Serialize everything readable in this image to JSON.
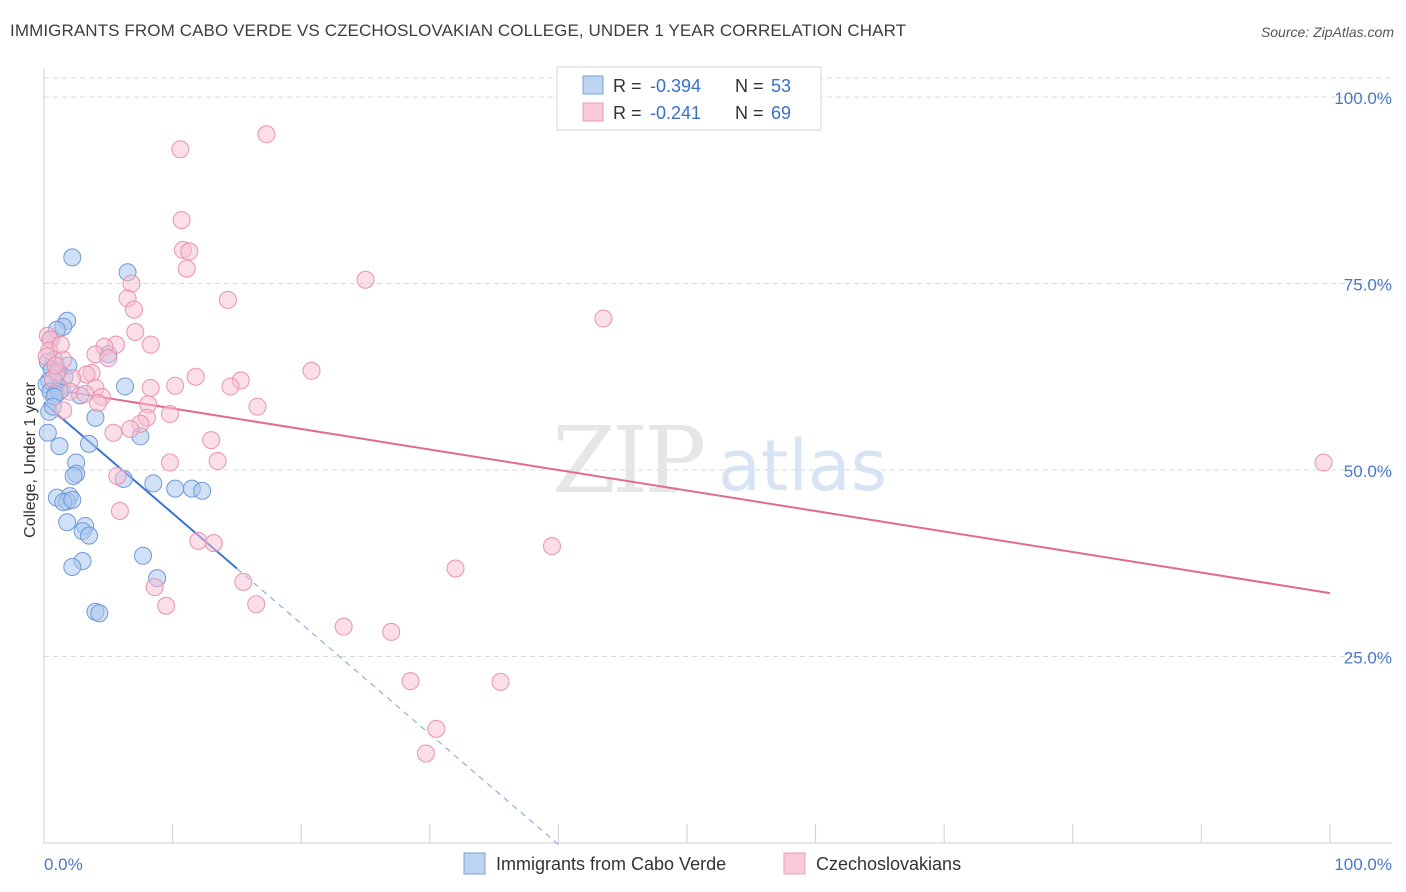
{
  "title": "IMMIGRANTS FROM CABO VERDE VS CZECHOSLOVAKIAN COLLEGE, UNDER 1 YEAR CORRELATION CHART",
  "source": "Source: ZipAtlas.com",
  "watermark": {
    "zip": "ZIP",
    "atlas": "atlas"
  },
  "colors": {
    "blue_fill": "#a9c6ee",
    "blue_stroke": "#6f9ad8",
    "blue_line": "#3a74d0",
    "pink_fill": "#f7bdd0",
    "pink_stroke": "#e893b0",
    "pink_line": "#e06a94",
    "grid": "#d9d9d9",
    "tick_text": "#4a78c8"
  },
  "legend": {
    "rows": [
      {
        "r_label": "R =",
        "r_value": "-0.394",
        "n_label": "N =",
        "n_value": "53"
      },
      {
        "r_label": "R =",
        "r_value": "-0.241",
        "n_label": "N =",
        "n_value": "69"
      }
    ]
  },
  "chart_data": {
    "type": "scatter",
    "title": "IMMIGRANTS FROM CABO VERDE VS CZECHOSLOVAKIAN COLLEGE, UNDER 1 YEAR CORRELATION CHART",
    "xlabel": "",
    "ylabel": "College, Under 1 year",
    "xlim": [
      0,
      100
    ],
    "ylim": [
      0,
      102
    ],
    "x_tick_labels": [
      "0.0%",
      "100.0%"
    ],
    "y_tick_labels": [
      "25.0%",
      "50.0%",
      "75.0%",
      "100.0%"
    ],
    "y_ticks": [
      25,
      50,
      75,
      100
    ],
    "series": [
      {
        "name": "Immigrants from Cabo Verde",
        "color": "blue",
        "r": -0.394,
        "n": 53,
        "trend": {
          "x0": 0,
          "y0": 59.0,
          "x1": 15,
          "y1": 36.8,
          "dash_to_x": 40,
          "dash_to_y": -0.2
        },
        "points": [
          [
            2.2,
            78.5
          ],
          [
            6.5,
            76.5
          ],
          [
            1.8,
            70.0
          ],
          [
            1.5,
            69.2
          ],
          [
            1.0,
            68.8
          ],
          [
            0.5,
            67.5
          ],
          [
            0.8,
            64.8
          ],
          [
            0.3,
            64.5
          ],
          [
            0.6,
            63.5
          ],
          [
            0.4,
            62.0
          ],
          [
            0.2,
            61.5
          ],
          [
            1.2,
            61.0
          ],
          [
            0.5,
            60.5
          ],
          [
            1.4,
            60.8
          ],
          [
            0.9,
            60.2
          ],
          [
            5.0,
            65.5
          ],
          [
            6.3,
            61.2
          ],
          [
            4.0,
            57.0
          ],
          [
            7.5,
            54.5
          ],
          [
            0.3,
            55.0
          ],
          [
            1.2,
            53.2
          ],
          [
            3.5,
            53.5
          ],
          [
            2.5,
            51.0
          ],
          [
            2.5,
            49.5
          ],
          [
            2.3,
            49.2
          ],
          [
            6.2,
            48.8
          ],
          [
            8.5,
            48.2
          ],
          [
            10.2,
            47.5
          ],
          [
            11.5,
            47.5
          ],
          [
            12.3,
            47.2
          ],
          [
            1.0,
            46.3
          ],
          [
            2.0,
            46.5
          ],
          [
            1.8,
            45.8
          ],
          [
            1.5,
            45.7
          ],
          [
            2.2,
            46.0
          ],
          [
            1.8,
            43.0
          ],
          [
            3.2,
            42.5
          ],
          [
            3.0,
            41.8
          ],
          [
            3.5,
            41.2
          ],
          [
            7.7,
            38.5
          ],
          [
            3.0,
            37.8
          ],
          [
            2.2,
            37.0
          ],
          [
            8.8,
            35.5
          ],
          [
            4.0,
            31.0
          ],
          [
            4.3,
            30.8
          ],
          [
            1.2,
            60.5
          ],
          [
            0.8,
            59.8
          ],
          [
            1.6,
            62.5
          ],
          [
            0.4,
            57.8
          ],
          [
            0.7,
            58.5
          ],
          [
            1.1,
            63.2
          ],
          [
            1.9,
            64.0
          ],
          [
            2.8,
            60.0
          ]
        ]
      },
      {
        "name": "Czechoslovakians",
        "color": "pink",
        "r": -0.241,
        "n": 69,
        "trend": {
          "x0": 0,
          "y0": 61.0,
          "x1": 100,
          "y1": 33.5
        },
        "points": [
          [
            17.3,
            95.0
          ],
          [
            10.6,
            93.0
          ],
          [
            10.7,
            83.5
          ],
          [
            10.8,
            79.5
          ],
          [
            11.3,
            79.3
          ],
          [
            11.1,
            77.0
          ],
          [
            25.0,
            75.5
          ],
          [
            6.8,
            75.0
          ],
          [
            6.5,
            73.0
          ],
          [
            14.3,
            72.8
          ],
          [
            7.0,
            71.5
          ],
          [
            43.5,
            70.3
          ],
          [
            7.1,
            68.5
          ],
          [
            0.3,
            68.0
          ],
          [
            0.5,
            67.5
          ],
          [
            8.3,
            66.8
          ],
          [
            5.6,
            66.8
          ],
          [
            4.7,
            66.5
          ],
          [
            0.4,
            66.0
          ],
          [
            0.2,
            65.2
          ],
          [
            4.0,
            65.5
          ],
          [
            1.5,
            64.8
          ],
          [
            5.0,
            65.0
          ],
          [
            3.7,
            63.0
          ],
          [
            3.3,
            62.8
          ],
          [
            1.0,
            63.0
          ],
          [
            0.7,
            62.2
          ],
          [
            2.2,
            62.3
          ],
          [
            20.8,
            63.3
          ],
          [
            11.8,
            62.5
          ],
          [
            15.3,
            62.0
          ],
          [
            10.2,
            61.3
          ],
          [
            14.5,
            61.2
          ],
          [
            8.3,
            61.0
          ],
          [
            4.0,
            61.0
          ],
          [
            2.0,
            60.5
          ],
          [
            3.2,
            60.2
          ],
          [
            4.5,
            59.8
          ],
          [
            4.2,
            59.0
          ],
          [
            16.6,
            58.5
          ],
          [
            8.1,
            58.8
          ],
          [
            1.5,
            58.0
          ],
          [
            9.8,
            57.5
          ],
          [
            8.0,
            57.0
          ],
          [
            7.5,
            56.2
          ],
          [
            6.7,
            55.5
          ],
          [
            5.4,
            55.0
          ],
          [
            13.0,
            54.0
          ],
          [
            13.5,
            51.2
          ],
          [
            9.8,
            51.0
          ],
          [
            99.5,
            51.0
          ],
          [
            5.7,
            49.2
          ],
          [
            5.9,
            44.5
          ],
          [
            12.0,
            40.5
          ],
          [
            13.2,
            40.2
          ],
          [
            39.5,
            39.8
          ],
          [
            32.0,
            36.8
          ],
          [
            15.5,
            35.0
          ],
          [
            8.6,
            34.3
          ],
          [
            9.5,
            31.8
          ],
          [
            16.5,
            32.0
          ],
          [
            23.3,
            29.0
          ],
          [
            27.0,
            28.3
          ],
          [
            28.5,
            21.7
          ],
          [
            35.5,
            21.6
          ],
          [
            30.5,
            15.3
          ],
          [
            29.7,
            12.0
          ],
          [
            0.9,
            64.0
          ],
          [
            1.3,
            66.8
          ]
        ]
      }
    ]
  },
  "bottom_legend": {
    "items": [
      {
        "label": "Immigrants from Cabo Verde"
      },
      {
        "label": "Czechoslovakians"
      }
    ]
  }
}
